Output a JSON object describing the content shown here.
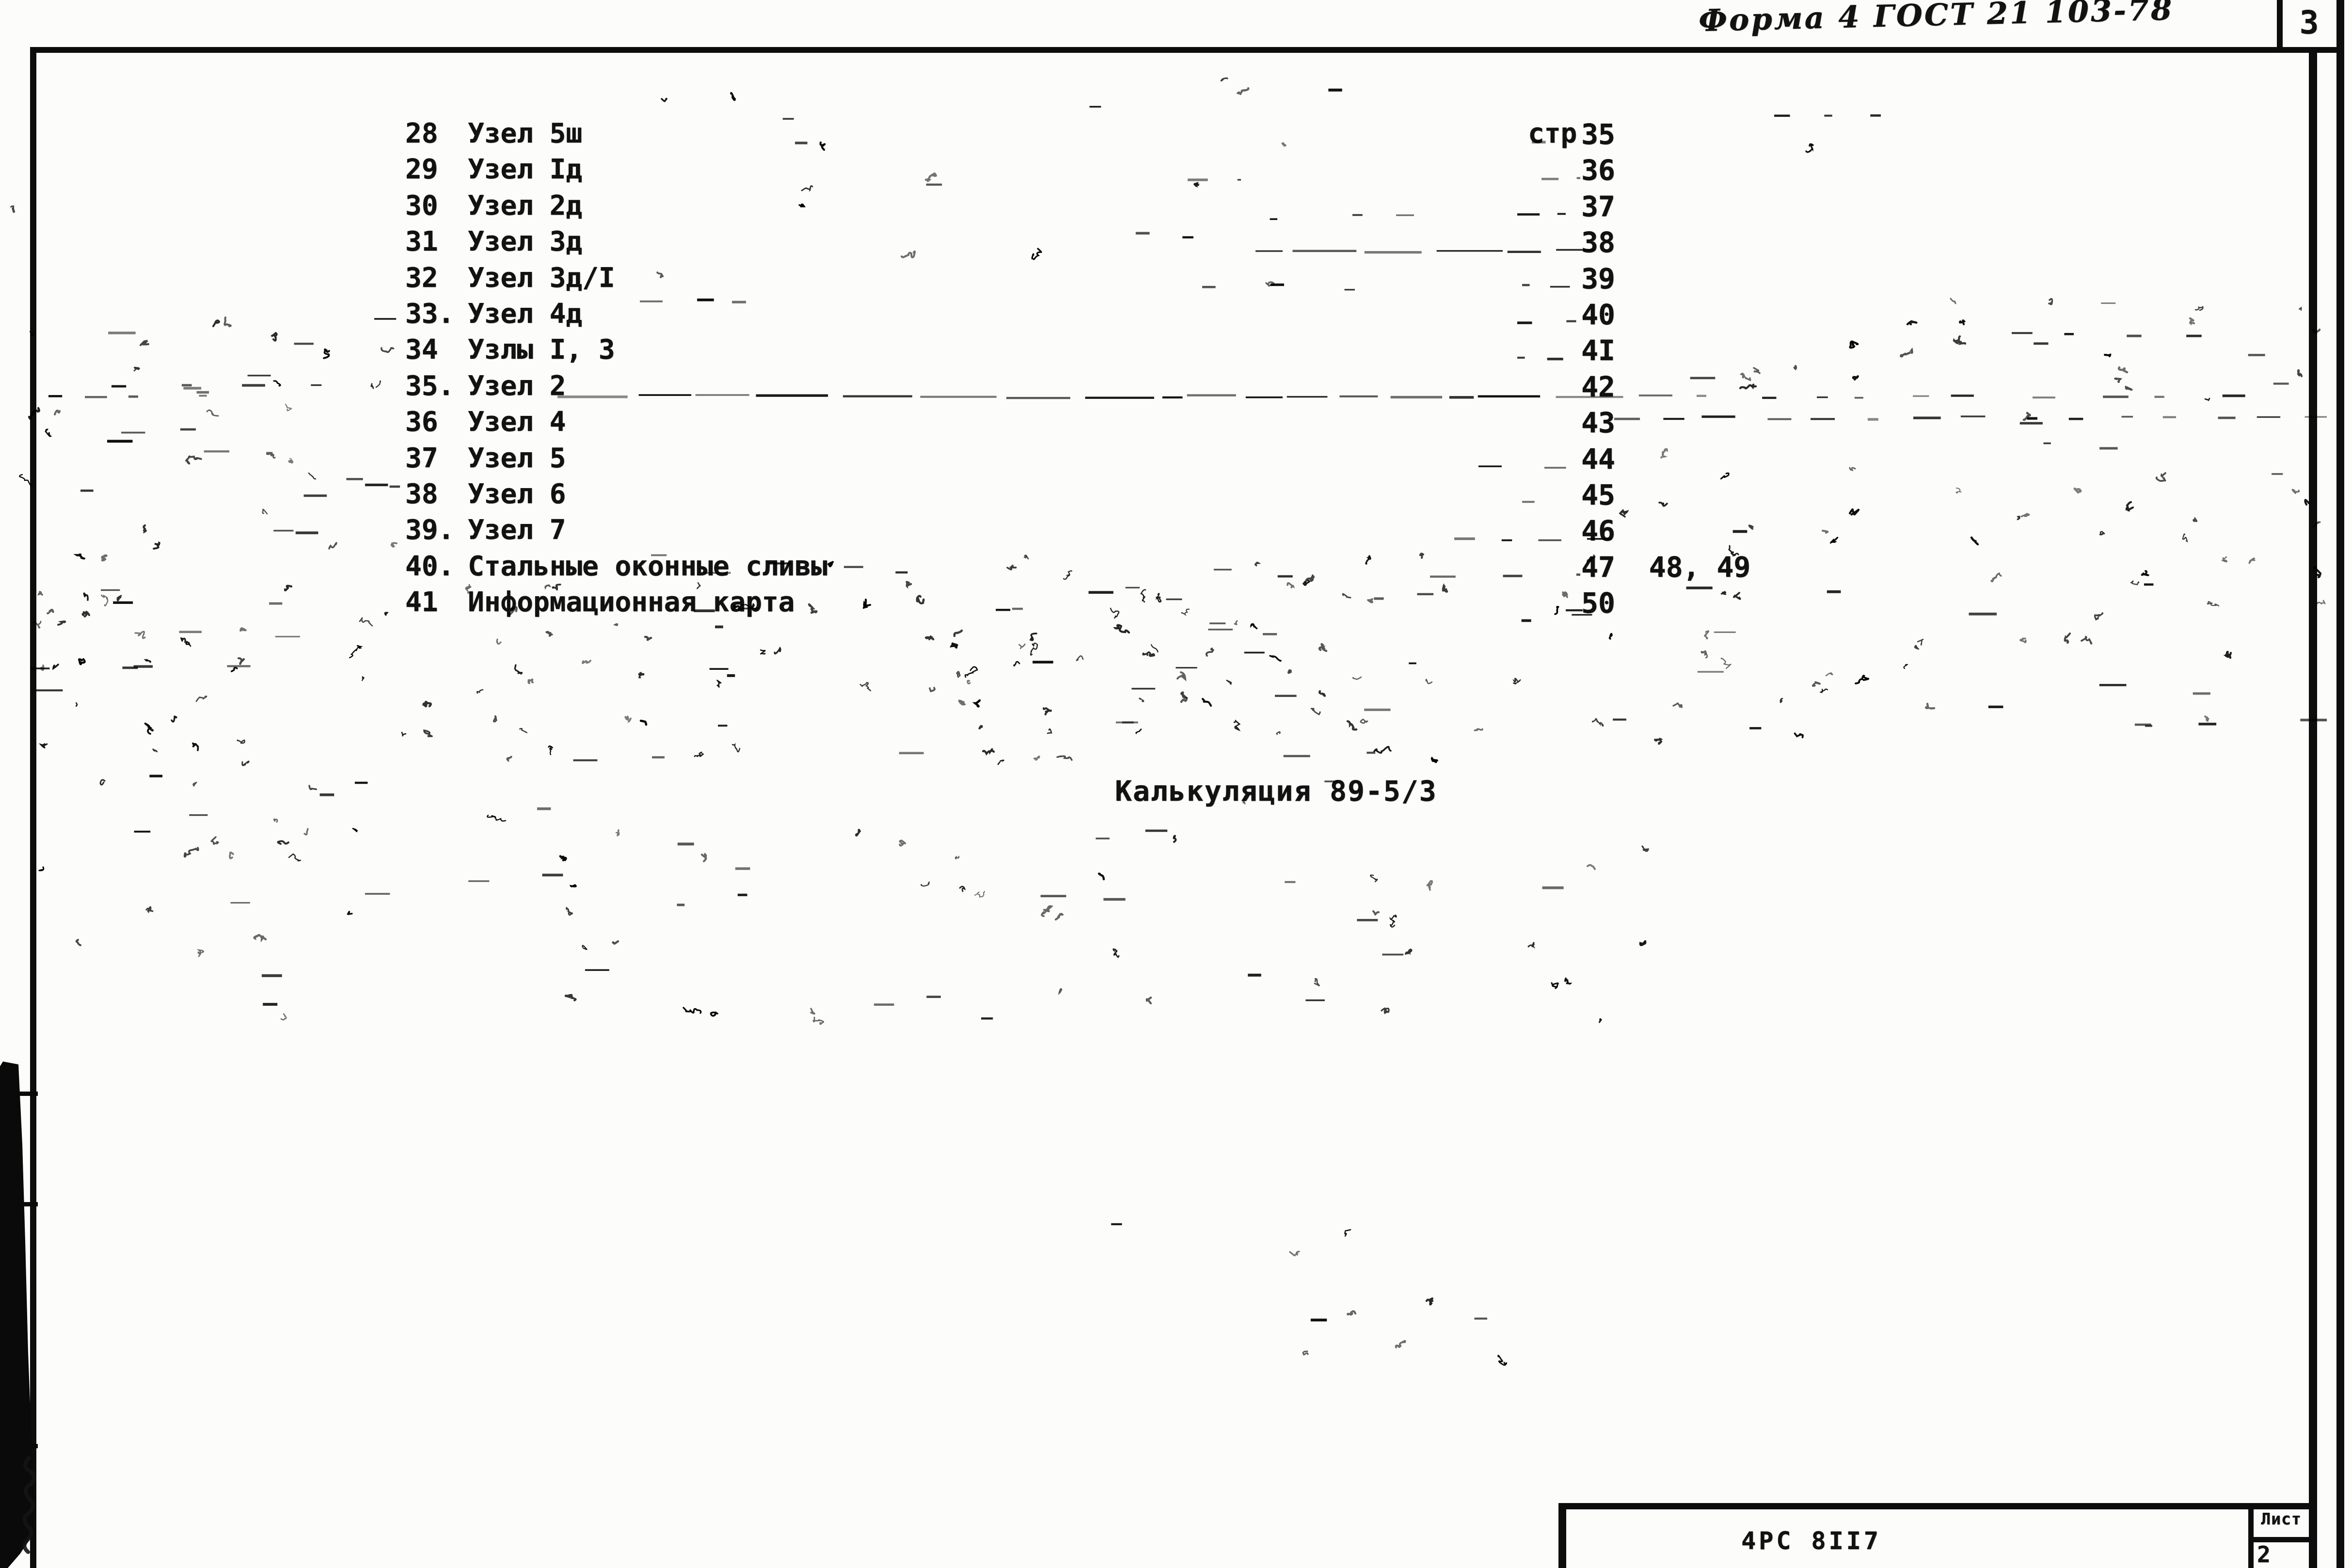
{
  "page": {
    "form_label": "Форма 4 ГОСТ 21 103-78",
    "corner_page_number": "3"
  },
  "toc": {
    "page_column_prefix": "стр",
    "rows": [
      {
        "num": "28",
        "label": "Узел 5ш",
        "prefix": "стр",
        "pages": "35"
      },
      {
        "num": "29",
        "label": "Узел Iд",
        "pages": "36"
      },
      {
        "num": "30",
        "label": "Узел 2д",
        "pages": "37"
      },
      {
        "num": "31",
        "label": "Узел 3д",
        "pages": "38"
      },
      {
        "num": "32",
        "label": "Узел 3д/I",
        "pages": "39"
      },
      {
        "num": "33.",
        "label": "Узел 4д",
        "pages": "40"
      },
      {
        "num": "34",
        "label": "Узлы I, 3",
        "pages": "4I"
      },
      {
        "num": "35.",
        "label": "Узел 2",
        "pages": "42"
      },
      {
        "num": "36",
        "label": "Узел 4",
        "pages": "43"
      },
      {
        "num": "37",
        "label": "Узел 5",
        "pages": "44"
      },
      {
        "num": "38",
        "label": "Узел 6",
        "pages": "45"
      },
      {
        "num": "39.",
        "label": "Узел 7",
        "pages": "46"
      },
      {
        "num": "40.",
        "label": "Стальные оконные сливы",
        "pages": "47  48, 49"
      },
      {
        "num": "41",
        "label": "Информационная карта",
        "pages": "50"
      }
    ]
  },
  "note": {
    "text": "Калькуляция 89-5/3"
  },
  "title_block": {
    "doc_code": "4РС 8II7",
    "sheet_label": "Лист",
    "sheet_number": "2"
  },
  "colors": {
    "ink": "#101010",
    "paper": "#fcfcfa"
  }
}
